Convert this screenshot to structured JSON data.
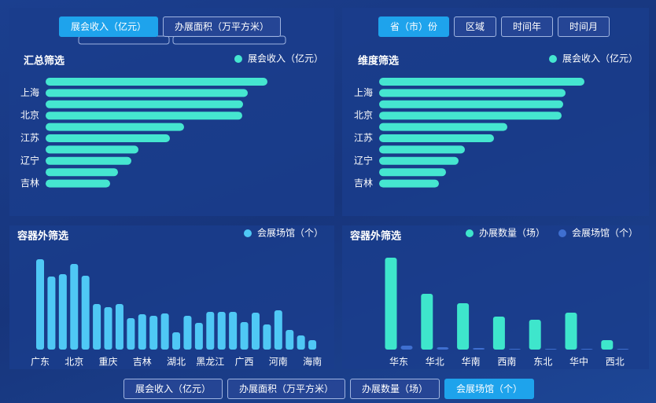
{
  "top_left_tabs": {
    "items": [
      "展会收入（亿元）",
      "办展面积（万平方米）"
    ],
    "active": 0
  },
  "top_right_tabs": {
    "items": [
      "省（市）份",
      "区域",
      "时间年",
      "时间月"
    ],
    "active": 0
  },
  "bottom_tabs": {
    "items": [
      "展会收入（亿元）",
      "办展面积（万平方米）",
      "办展数量（场）",
      "会展场馆（个）"
    ],
    "active": 3
  },
  "chart_data": [
    {
      "type": "hbar",
      "title": "汇总筛选",
      "categories": [
        null,
        "上海",
        null,
        "北京",
        null,
        "江苏",
        null,
        "辽宁",
        null,
        "吉林"
      ],
      "series": [
        {
          "name": "展会收入（亿元）",
          "color": "#45e6d0",
          "values": [
            282,
            257,
            251,
            250,
            176,
            158,
            118,
            109,
            92,
            82
          ]
        }
      ],
      "xlim": [
        0,
        300
      ]
    },
    {
      "type": "hbar",
      "title": "维度筛选",
      "categories": [
        null,
        "上海",
        null,
        "北京",
        null,
        "江苏",
        null,
        "辽宁",
        null,
        "吉林"
      ],
      "series": [
        {
          "name": "展会收入（亿元）",
          "color": "#45e6d0",
          "values": [
            261,
            237,
            234,
            232,
            163,
            146,
            109,
            101,
            85,
            76
          ]
        }
      ],
      "xlim": [
        0,
        300
      ]
    },
    {
      "type": "vbar",
      "title": "容器外筛选",
      "categories": [
        "广东",
        null,
        null,
        "北京",
        null,
        null,
        "重庆",
        null,
        null,
        "吉林",
        null,
        null,
        "湖北",
        null,
        null,
        "黑龙江",
        null,
        null,
        "广西",
        null,
        null,
        "河南",
        null,
        null,
        "海南"
      ],
      "series": [
        {
          "name": "会展场馆（个）",
          "color": "#4fc8f5",
          "values": [
            115,
            93,
            96,
            109,
            94,
            58,
            54,
            58,
            40,
            45,
            43,
            46,
            22,
            43,
            34,
            48,
            48,
            48,
            35,
            47,
            32,
            50,
            25,
            18,
            12
          ]
        }
      ],
      "ylim": [
        0,
        130
      ]
    },
    {
      "type": "vbar",
      "title": "容器外筛选",
      "categories": [
        "华东",
        "华北",
        "华南",
        "西南",
        "东北",
        "华中",
        "西北"
      ],
      "series": [
        {
          "name": "办展数量（场）",
          "color": "#3ee6cc",
          "values": [
            117,
            71,
            59,
            42,
            38,
            47,
            12
          ]
        },
        {
          "name": "会展场馆（个）",
          "color": "#3f6fd0",
          "values": [
            5,
            3,
            2,
            1,
            1,
            1,
            1
          ]
        }
      ],
      "ylim": [
        0,
        130
      ]
    }
  ]
}
